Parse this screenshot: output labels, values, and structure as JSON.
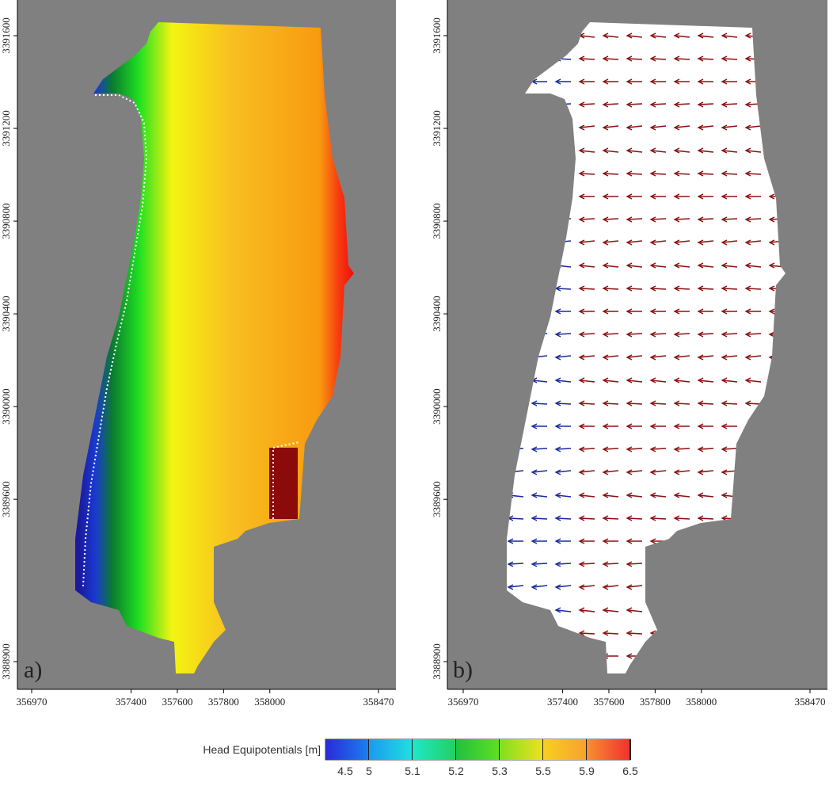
{
  "chart_data": [
    {
      "type": "heatmap",
      "panel_label": "a)",
      "xlim": [
        356970,
        358470
      ],
      "xticks": [
        356970,
        357400,
        357600,
        357800,
        358000,
        358470
      ],
      "ylim": [
        3388900,
        3391600
      ],
      "yticks": [
        3388900,
        3389600,
        3390000,
        3390400,
        3390800,
        3391200,
        3391600
      ]
    },
    {
      "type": "vector",
      "panel_label": "b)",
      "xlim": [
        356970,
        358470
      ],
      "xticks": [
        356970,
        357400,
        357600,
        357800,
        358000,
        358470
      ],
      "ylim": [
        3388900,
        3391600
      ],
      "yticks": [
        3388900,
        3389600,
        3390000,
        3390400,
        3390800,
        3391200,
        3391600
      ]
    }
  ],
  "colorbar": {
    "title": "Head Equipotentials [m]",
    "labels": [
      4.5,
      5,
      5.1,
      5.2,
      5.3,
      5.5,
      5.9,
      6.5
    ]
  }
}
